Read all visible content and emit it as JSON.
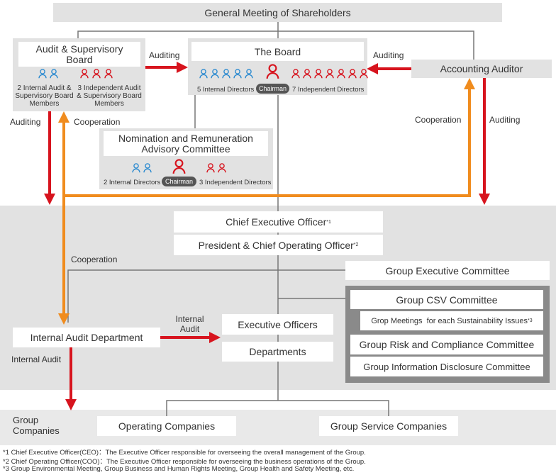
{
  "header": {
    "title": "General Meeting of Shareholders"
  },
  "audit_board": {
    "title": "Audit & Supervisory Board",
    "internal": "2 Internal Audit & Supervisory Board Members",
    "independent": "3 Independent Audit & Supervisory Board Members"
  },
  "board": {
    "title": "The Board",
    "internal": "5 Internal Directors",
    "chairman": "Chairman",
    "independent": "7 Independent Directors"
  },
  "accounting_auditor": {
    "title": "Accounting Auditor"
  },
  "committee": {
    "title": "Nomination and Remuneration Advisory Committee",
    "internal": "2 Internal Directors",
    "chairman": "Chairman",
    "independent": "3 Independent Directors"
  },
  "arrows": {
    "audit_to_board": "Auditing",
    "accounting_to_board": "Auditing",
    "audit_down": "Auditing",
    "accounting_down": "Auditing",
    "cooperation_left": "Cooperation",
    "cooperation_right": "Cooperation",
    "cooperation_internal": "Cooperation",
    "internal_audit_right": "Internal Audit",
    "internal_audit_down": "Internal Audit"
  },
  "executive": {
    "ceo": {
      "title": "Chief Executive Officer",
      "note": "*1"
    },
    "president": {
      "title": "President & Chief Operating Officer",
      "note": "*2"
    }
  },
  "group_executive_committee": {
    "title": "Group Executive Committee",
    "csv": {
      "title": "Group CSV Committee",
      "sub": {
        "title": "Grop Meetings  for each Sustainability Issues",
        "note": "*3"
      }
    },
    "risk": "Group Risk and Compliance Committee",
    "disclosure": "Group Information Disclosure Committee"
  },
  "internal_audit_department": "Internal Audit Department",
  "executive_officers": "Executive Officers",
  "departments": "Departments",
  "group_companies": {
    "title": "Group Companies",
    "operating": "Operating Companies",
    "service": "Group Service Companies"
  },
  "footnotes": [
    "*1 Chief Executive Officer(CEO)：The Executive Officer responsible for overseeing the overall management of the Group.",
    "*2 Chief Operating Officer(COO)：The Executive Officer responsible for overseeing the business operations of the Group.",
    "*3 Group Environmental Meeting, Group Business and Human Rights Meeting, Group Health and Safety Meeting, etc."
  ]
}
